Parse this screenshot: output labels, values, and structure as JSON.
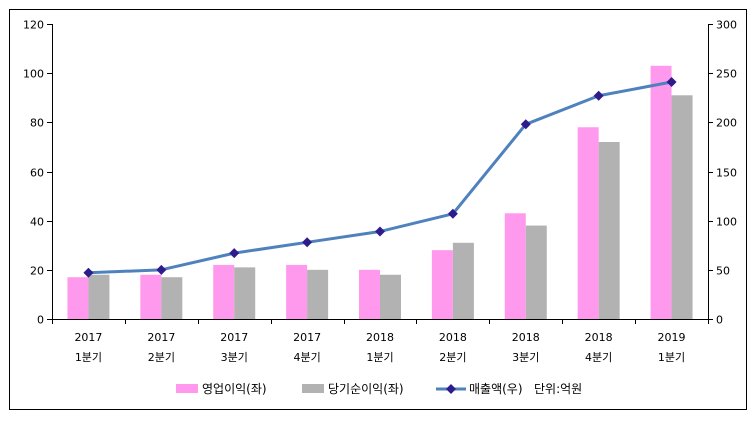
{
  "chart_data": {
    "type": "bar",
    "categories": [
      [
        "2017",
        "1분기"
      ],
      [
        "2017",
        "2분기"
      ],
      [
        "2017",
        "3분기"
      ],
      [
        "2017",
        "4분기"
      ],
      [
        "2018",
        "1분기"
      ],
      [
        "2018",
        "2분기"
      ],
      [
        "2018",
        "3분기"
      ],
      [
        "2018",
        "4분기"
      ],
      [
        "2019",
        "1분기"
      ]
    ],
    "series": [
      {
        "name": "영업이익(좌)",
        "kind": "bar",
        "axis": "left",
        "color": "#ff99ee",
        "values": [
          17,
          18,
          22,
          22,
          20,
          28,
          43,
          78,
          103
        ]
      },
      {
        "name": "당기순이익(좌)",
        "kind": "bar",
        "axis": "left",
        "color": "#b2b2b2",
        "values": [
          18,
          17,
          21,
          20,
          18,
          31,
          38,
          72,
          91
        ]
      },
      {
        "name": "매출액(우)",
        "kind": "line",
        "axis": "right",
        "color": "#4f81bd",
        "marker_color": "#2e1b8c",
        "values": [
          47,
          50,
          67,
          78,
          89,
          107,
          198,
          227,
          241
        ]
      }
    ],
    "unit_note": "단위:억원",
    "ylim_left": [
      0,
      120
    ],
    "yticks_left": [
      0,
      20,
      40,
      60,
      80,
      100,
      120
    ],
    "ylim_right": [
      0,
      300
    ],
    "yticks_right": [
      0,
      50,
      100,
      150,
      200,
      250,
      300
    ],
    "grid": false,
    "legend_position": "bottom"
  }
}
